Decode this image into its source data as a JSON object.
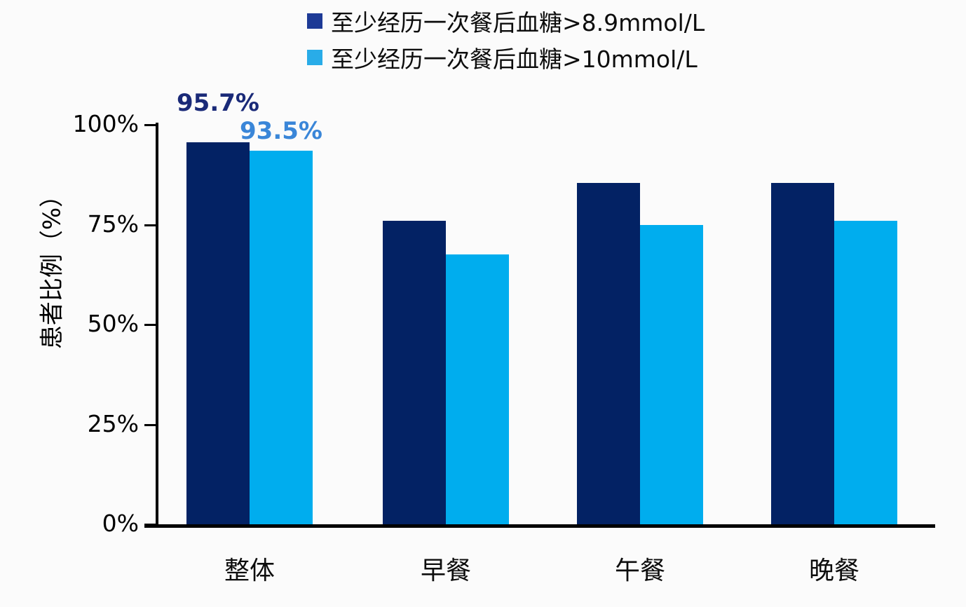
{
  "background_color": "#fbfbfb",
  "axis_color": "#000000",
  "legend": {
    "items": [
      {
        "label": "至少经历一次餐后血糖>8.9mmol/L",
        "swatch_color": "#1d3a96"
      },
      {
        "label": "至少经历一次餐后血糖>10mmol/L",
        "swatch_color": "#29ace8"
      }
    ]
  },
  "chart_data": {
    "type": "bar",
    "title": "",
    "xlabel": "",
    "ylabel": "患者比例（%）",
    "ylim": [
      0,
      100
    ],
    "grid": false,
    "legend_position": "top",
    "categories": [
      "整体",
      "早餐",
      "午餐",
      "晚餐"
    ],
    "series": [
      {
        "name": "至少经历一次餐后血糖>8.9mmol/L",
        "color": "#032264",
        "values": [
          95.7,
          76,
          85.5,
          85.5
        ]
      },
      {
        "name": "至少经历一次餐后血糖>10mmol/L",
        "color": "#00adee",
        "values": [
          93.5,
          67.5,
          75,
          76
        ]
      }
    ],
    "y_ticks": [
      {
        "value": 0,
        "label": "0%"
      },
      {
        "value": 25,
        "label": "25%"
      },
      {
        "value": 50,
        "label": "50%"
      },
      {
        "value": 75,
        "label": "75%"
      },
      {
        "value": 100,
        "label": "100%"
      }
    ],
    "data_labels": [
      {
        "series": 0,
        "category": 0,
        "text": "95.7%",
        "color": "#1a2a78"
      },
      {
        "series": 1,
        "category": 0,
        "text": "93.5%",
        "color": "#3a86d8"
      }
    ]
  }
}
